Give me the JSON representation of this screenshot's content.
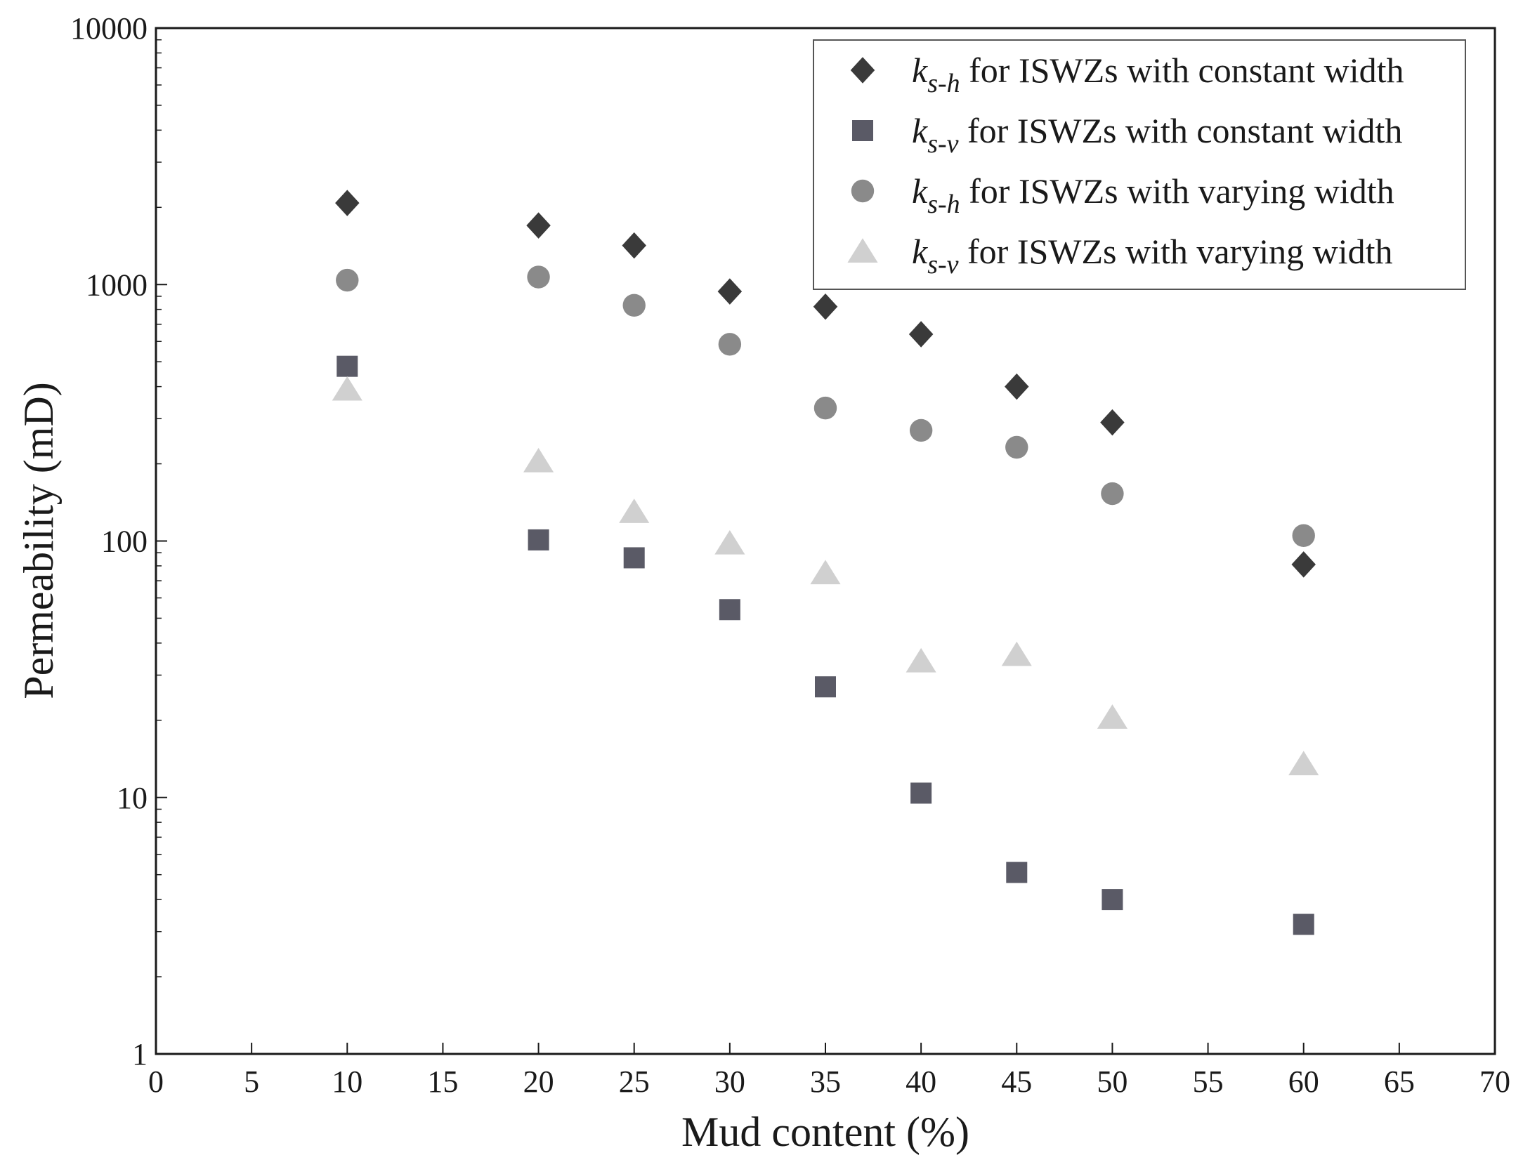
{
  "chart_data": {
    "type": "scatter",
    "title": "",
    "xlabel": "Mud content (%)",
    "ylabel": "Permeability (mD)",
    "xlim": [
      0,
      70
    ],
    "ylim": [
      1,
      10000
    ],
    "yscale": "log",
    "grid": false,
    "legend_position": "top-right",
    "x_ticks": [
      "0",
      "5",
      "10",
      "15",
      "20",
      "25",
      "30",
      "35",
      "40",
      "45",
      "50",
      "55",
      "60",
      "65",
      "70"
    ],
    "y_ticks": [
      "1",
      "10",
      "100",
      "1000",
      "10000"
    ],
    "series": [
      {
        "name": "k_s-h for ISWZs with constant width",
        "symbol": "k",
        "subscript": "s-h",
        "suffix": " for ISWZs with constant width",
        "marker": "diamond",
        "color": "#3a3a3a",
        "x": [
          10,
          20,
          25,
          30,
          35,
          40,
          45,
          50,
          60
        ],
        "y": [
          2080,
          1700,
          1420,
          940,
          820,
          640,
          400,
          290,
          81
        ]
      },
      {
        "name": "k_s-v for ISWZs with constant width",
        "symbol": "k",
        "subscript": "s-v",
        "suffix": " for ISWZs with constant width",
        "marker": "square",
        "color": "#5a5a66",
        "x": [
          10,
          20,
          25,
          30,
          35,
          40,
          45,
          50,
          60
        ],
        "y": [
          480,
          101,
          86,
          54,
          27,
          10.4,
          5.1,
          4.0,
          3.2
        ]
      },
      {
        "name": "k_s-h for ISWZs with varying width",
        "symbol": "k",
        "subscript": "s-h",
        "suffix": " for ISWZs with varying width",
        "marker": "circle",
        "color": "#8a8a8a",
        "x": [
          10,
          20,
          25,
          30,
          35,
          40,
          45,
          50,
          60
        ],
        "y": [
          1040,
          1070,
          830,
          585,
          330,
          270,
          232,
          153,
          105
        ]
      },
      {
        "name": "k_s-v for ISWZs with varying width",
        "symbol": "k",
        "subscript": "s-v",
        "suffix": " for ISWZs with varying width",
        "marker": "triangle",
        "color": "#d0d0d0",
        "x": [
          10,
          20,
          25,
          30,
          35,
          40,
          45,
          50,
          60
        ],
        "y": [
          390,
          205,
          130,
          98,
          75,
          34,
          36,
          20.5,
          13.5
        ]
      }
    ]
  }
}
